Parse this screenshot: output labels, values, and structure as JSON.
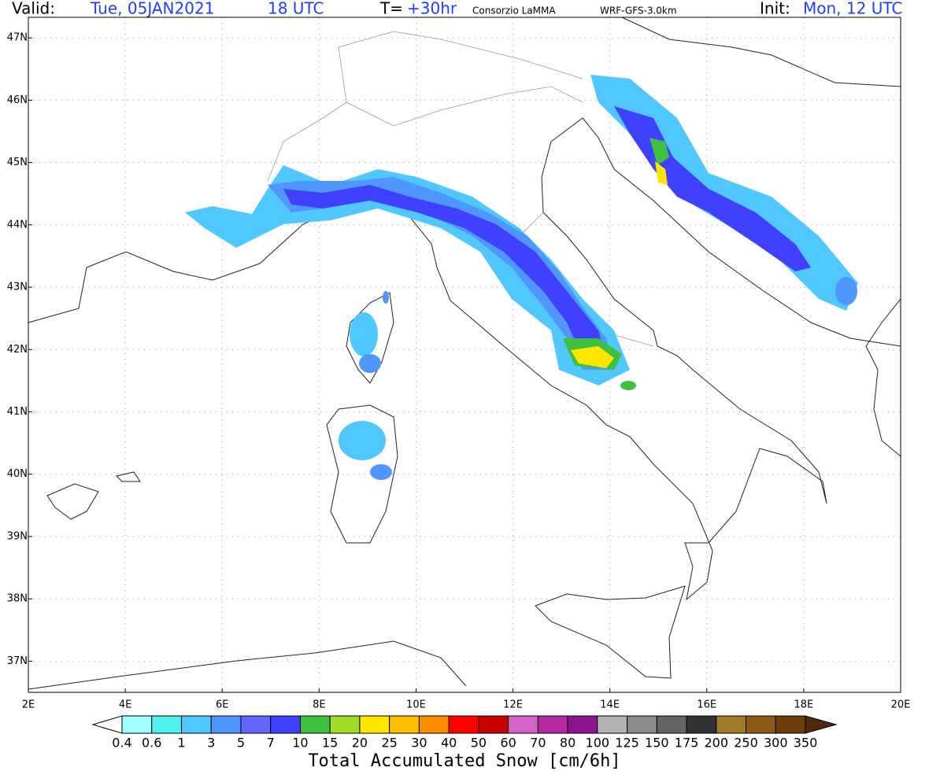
{
  "header": {
    "valid_label": "Valid:",
    "valid_date": "Tue, 05JAN2021",
    "valid_time": "18 UTC",
    "step_label": "T=",
    "step": "+30hr",
    "source": "Consorzio LaMMA",
    "model": "WRF-GFS-3.0km",
    "init_label": "Init:",
    "init": "Mon, 12 UTC"
  },
  "map": {
    "xlim": [
      2,
      20
    ],
    "ylim": [
      36.5,
      47.33
    ],
    "grid": true,
    "xticks": [
      {
        "value": 2,
        "label": "2E"
      },
      {
        "value": 4,
        "label": "4E"
      },
      {
        "value": 6,
        "label": "6E"
      },
      {
        "value": 8,
        "label": "8E"
      },
      {
        "value": 10,
        "label": "10E"
      },
      {
        "value": 12,
        "label": "12E"
      },
      {
        "value": 14,
        "label": "14E"
      },
      {
        "value": 16,
        "label": "16E"
      },
      {
        "value": 18,
        "label": "18E"
      },
      {
        "value": 20,
        "label": "20E"
      }
    ],
    "yticks": [
      {
        "value": 37,
        "label": "37N"
      },
      {
        "value": 38,
        "label": "38N"
      },
      {
        "value": 39,
        "label": "39N"
      },
      {
        "value": 40,
        "label": "40N"
      },
      {
        "value": 41,
        "label": "41N"
      },
      {
        "value": 42,
        "label": "42N"
      },
      {
        "value": 43,
        "label": "43N"
      },
      {
        "value": 44,
        "label": "44N"
      },
      {
        "value": 45,
        "label": "45N"
      },
      {
        "value": 46,
        "label": "46N"
      },
      {
        "value": 47,
        "label": "47N"
      }
    ]
  },
  "legend": {
    "title": "Total Accumulated Snow [cm/6h]",
    "levels": [
      0.4,
      0.6,
      1,
      3,
      5,
      7,
      10,
      15,
      20,
      25,
      30,
      40,
      50,
      60,
      70,
      80,
      100,
      125,
      150,
      175,
      200,
      250,
      300,
      350
    ],
    "colors": [
      "#ffffff",
      "#a0ffff",
      "#50f0f0",
      "#50c8ff",
      "#5096ff",
      "#6464ff",
      "#4040ff",
      "#40c040",
      "#a0dc28",
      "#ffe600",
      "#ffbe00",
      "#ff8c00",
      "#ff0000",
      "#c80000",
      "#d264c8",
      "#b428a0",
      "#8c148c",
      "#b4b4b4",
      "#8c8c8c",
      "#646464",
      "#323232",
      "#a07828",
      "#8c5a14",
      "#6e3c0a",
      "#50280a"
    ]
  }
}
